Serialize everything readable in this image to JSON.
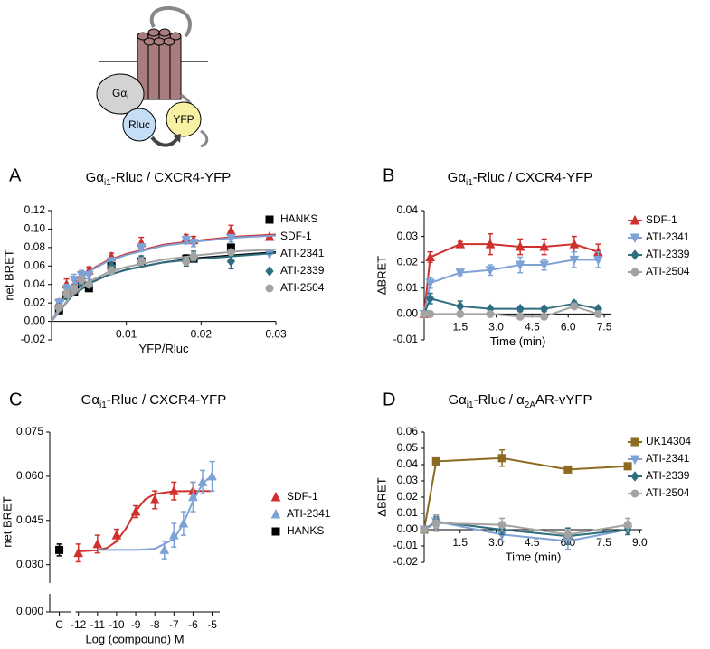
{
  "diagram": {
    "g_alpha": "Gα",
    "g_alpha_sub": "i",
    "rluc": "Rluc",
    "yfp": "YFP"
  },
  "chart_data": [
    {
      "panel": "A",
      "type": "scatter",
      "title": [
        {
          "text": "Gα"
        },
        {
          "text": "i1",
          "sub": true
        },
        {
          "text": "-Rluc / CXCR4-YFP"
        }
      ],
      "xlabel": "YFP/Rluc",
      "ylabel": "net BRET",
      "xlim": [
        0,
        0.03
      ],
      "ylim": [
        -0.02,
        0.12
      ],
      "xticks": [
        0.01,
        0.02,
        0.03
      ],
      "yticks": [
        -0.02,
        {
          "value": 0,
          "label": "0.00"
        },
        0.02,
        0.04,
        0.06,
        0.08,
        {
          "value": 0.1,
          "label": "0.10"
        },
        0.12
      ],
      "series": [
        {
          "name": "HANKS",
          "color": "#000000",
          "marker": "square",
          "x": [
            0.001,
            0.002,
            0.003,
            0.004,
            0.005,
            0.008,
            0.012,
            0.018,
            0.019,
            0.024
          ],
          "values": [
            0.012,
            0.028,
            0.032,
            0.04,
            0.036,
            0.06,
            0.065,
            0.068,
            0.068,
            0.08
          ],
          "errors": [
            0.003,
            0.004,
            0.004,
            0.003,
            0.003,
            0.003,
            0.004,
            0.004,
            0.003,
            0.002
          ],
          "fit_x": [
            0,
            0.0025,
            0.005,
            0.0075,
            0.01,
            0.015,
            0.02,
            0.025,
            0.03
          ],
          "fit": [
            0,
            0.026,
            0.041,
            0.05,
            0.056,
            0.064,
            0.069,
            0.072,
            0.075
          ]
        },
        {
          "name": "SDF-1",
          "color": "#d0312d",
          "marker": "triangle-up",
          "x": [
            0.001,
            0.002,
            0.003,
            0.004,
            0.005,
            0.008,
            0.012,
            0.018,
            0.019,
            0.024
          ],
          "values": [
            0.02,
            0.04,
            0.035,
            0.05,
            0.055,
            0.07,
            0.085,
            0.09,
            0.088,
            0.098
          ],
          "errors": [
            0.004,
            0.006,
            0.005,
            0.005,
            0.004,
            0.004,
            0.006,
            0.004,
            0.004,
            0.006
          ],
          "fit_x": [
            0,
            0.0025,
            0.005,
            0.0075,
            0.01,
            0.015,
            0.02,
            0.025,
            0.03
          ],
          "fit": [
            0,
            0.037,
            0.055,
            0.066,
            0.073,
            0.083,
            0.088,
            0.092,
            0.094
          ]
        },
        {
          "name": "ATI-2341",
          "color": "#7ea2d6",
          "marker": "triangle-down",
          "x": [
            0.001,
            0.002,
            0.003,
            0.004,
            0.005,
            0.008,
            0.012,
            0.018,
            0.019,
            0.024
          ],
          "values": [
            0.02,
            0.035,
            0.045,
            0.05,
            0.05,
            0.065,
            0.08,
            0.088,
            0.085,
            0.09
          ],
          "errors": [
            0.004,
            0.005,
            0.006,
            0.005,
            0.004,
            0.004,
            0.004,
            0.004,
            0.004,
            0.004
          ],
          "fit_x": [
            0,
            0.0025,
            0.005,
            0.0075,
            0.01,
            0.015,
            0.02,
            0.025,
            0.03
          ],
          "fit": [
            0,
            0.036,
            0.054,
            0.065,
            0.072,
            0.082,
            0.087,
            0.091,
            0.093
          ]
        },
        {
          "name": "ATI-2339",
          "color": "#2f6e80",
          "marker": "diamond",
          "x": [
            0.001,
            0.002,
            0.003,
            0.004,
            0.005,
            0.008,
            0.012,
            0.018,
            0.019,
            0.024
          ],
          "values": [
            0.015,
            0.028,
            0.035,
            0.04,
            0.04,
            0.06,
            0.067,
            0.065,
            0.07,
            0.065
          ],
          "errors": [
            0.003,
            0.004,
            0.004,
            0.004,
            0.003,
            0.004,
            0.004,
            0.005,
            0.006,
            0.008
          ],
          "fit_x": [
            0,
            0.0025,
            0.005,
            0.0075,
            0.01,
            0.015,
            0.02,
            0.025,
            0.03
          ],
          "fit": [
            0,
            0.026,
            0.041,
            0.05,
            0.056,
            0.064,
            0.068,
            0.071,
            0.074
          ]
        },
        {
          "name": "ATI-2504",
          "color": "#a3a3a3",
          "marker": "circle",
          "x": [
            0.001,
            0.002,
            0.003,
            0.004,
            0.005,
            0.008,
            0.012,
            0.018,
            0.019,
            0.024
          ],
          "values": [
            0.015,
            0.03,
            0.035,
            0.045,
            0.04,
            0.055,
            0.065,
            0.065,
            0.07,
            0.075
          ],
          "errors": [
            0.003,
            0.004,
            0.004,
            0.004,
            0.003,
            0.004,
            0.004,
            0.004,
            0.004,
            0.003
          ],
          "fit_x": [
            0,
            0.0025,
            0.005,
            0.0075,
            0.01,
            0.015,
            0.02,
            0.025,
            0.03
          ],
          "fit": [
            0,
            0.027,
            0.043,
            0.053,
            0.059,
            0.067,
            0.072,
            0.076,
            0.078
          ]
        }
      ]
    },
    {
      "panel": "B",
      "type": "line",
      "title": [
        {
          "text": "Gα"
        },
        {
          "text": "i1",
          "sub": true
        },
        {
          "text": "-Rluc / CXCR4-YFP"
        }
      ],
      "xlabel": "Time (min)",
      "ylabel": "ΔBRET",
      "xlim": [
        0,
        7.8
      ],
      "ylim": [
        -0.01,
        0.04
      ],
      "xticks": [
        1.5,
        {
          "value": 3,
          "label": "3.0"
        },
        4.5,
        {
          "value": 6,
          "label": "6.0"
        },
        7.5
      ],
      "yticks": [
        -0.01,
        {
          "value": 0,
          "label": "0.00"
        },
        0.01,
        0.02,
        0.03,
        0.04
      ],
      "series": [
        {
          "name": "SDF-1",
          "color": "#d0312d",
          "marker": "triangle-up",
          "x": [
            0,
            0.25,
            1.5,
            2.75,
            4,
            5,
            6.25,
            7.25
          ],
          "values": [
            0,
            0.022,
            0.027,
            0.027,
            0.026,
            0.026,
            0.027,
            0.024
          ],
          "errors": [
            0,
            0.002,
            0.001,
            0.004,
            0.003,
            0.003,
            0.003,
            0.003
          ]
        },
        {
          "name": "ATI-2341",
          "color": "#7ea2d6",
          "marker": "triangle-down",
          "x": [
            0,
            0.25,
            1.5,
            2.75,
            4,
            5,
            6.25,
            7.25
          ],
          "values": [
            0,
            0.012,
            0.016,
            0.017,
            0.019,
            0.019,
            0.021,
            0.021
          ],
          "errors": [
            0,
            0.002,
            0.001,
            0.002,
            0.003,
            0.002,
            0.003,
            0.003
          ]
        },
        {
          "name": "ATI-2339",
          "color": "#2f6e80",
          "marker": "diamond",
          "x": [
            0,
            0.25,
            1.5,
            2.75,
            4,
            5,
            6.25,
            7.25
          ],
          "values": [
            0,
            0.006,
            0.003,
            0.002,
            0.002,
            0.002,
            0.004,
            0.002
          ],
          "errors": [
            0,
            0.002,
            0.002,
            0.001,
            0.001,
            0.001,
            0.001,
            0.001
          ]
        },
        {
          "name": "ATI-2504",
          "color": "#a3a3a3",
          "marker": "circle",
          "x": [
            0,
            0.25,
            1.5,
            2.75,
            4,
            5,
            6.25,
            7.25
          ],
          "values": [
            0,
            0,
            0,
            0,
            -0.001,
            -0.001,
            0.003,
            0
          ],
          "errors": [
            0,
            0.001,
            0.001,
            0.001,
            0.001,
            0.001,
            0.001,
            0.001
          ]
        }
      ]
    },
    {
      "panel": "C",
      "type": "scatter",
      "axis_break": true,
      "title": [
        {
          "text": "Gα"
        },
        {
          "text": "i1",
          "sub": true
        },
        {
          "text": "-Rluc / CXCR4-YFP"
        }
      ],
      "xlabel": "Log (compound) M",
      "ylabel": "net BRET",
      "xlim": [
        -13.5,
        -4.6
      ],
      "ylim": [
        0.025,
        0.075
      ],
      "xticks": [
        {
          "value": -13,
          "label": "C"
        },
        -12,
        -11,
        -10,
        -9,
        -8,
        -7,
        -6,
        -5
      ],
      "yticks": [
        {
          "value": 0,
          "label": "0.000"
        },
        {
          "value": 0.03,
          "label": "0.030"
        },
        0.045,
        {
          "value": 0.06,
          "label": "0.060"
        },
        0.075
      ],
      "series": [
        {
          "name": "SDF-1",
          "color": "#d0312d",
          "marker": "triangle-up",
          "x": [
            -12,
            -11,
            -10,
            -9,
            -8,
            -7,
            -6
          ],
          "values": [
            0.034,
            0.037,
            0.04,
            0.048,
            0.052,
            0.055,
            0.055
          ],
          "errors": [
            0.003,
            0.003,
            0.002,
            0.002,
            0.003,
            0.003,
            0.003
          ],
          "fit_x": [
            -12,
            -11,
            -10.5,
            -10,
            -9.5,
            -9,
            -8.5,
            -8,
            -7,
            -6,
            -5
          ],
          "fit": [
            0.0345,
            0.0349,
            0.0357,
            0.0379,
            0.0424,
            0.0482,
            0.0522,
            0.054,
            0.0549,
            0.055,
            0.055
          ]
        },
        {
          "name": "ATI-2341",
          "color": "#7ea2d6",
          "marker": "triangle-up",
          "x": [
            -7.5,
            -7,
            -6.5,
            -6,
            -5.5,
            -5
          ],
          "values": [
            0.035,
            0.04,
            0.044,
            0.053,
            0.058,
            0.06
          ],
          "errors": [
            0.003,
            0.004,
            0.004,
            0.005,
            0.004,
            0.005
          ],
          "fit_x": [
            -11,
            -10,
            -9,
            -8,
            -7,
            -6.5,
            -6,
            -5.5,
            -5
          ],
          "fit": [
            0.035,
            0.035,
            0.035,
            0.0354,
            0.0387,
            0.044,
            0.0516,
            0.0575,
            0.0604
          ]
        },
        {
          "name": "HANKS",
          "color": "#000000",
          "marker": "square",
          "x": [
            -13
          ],
          "values": [
            0.035
          ],
          "errors": [
            0.002
          ]
        }
      ]
    },
    {
      "panel": "D",
      "type": "line",
      "title": [
        {
          "text": "Gα"
        },
        {
          "text": "i1",
          "sub": true
        },
        {
          "text": "-Rluc / α"
        },
        {
          "text": "2A",
          "sub": true
        },
        {
          "text": "AR-vYFP"
        }
      ],
      "xlabel": "Time (min)",
      "ylabel": "ΔBRET",
      "xlim": [
        0,
        9.1
      ],
      "ylim": [
        -0.02,
        0.06
      ],
      "xticks": [
        1.5,
        {
          "value": 3,
          "label": "3.0"
        },
        4.5,
        {
          "value": 6,
          "label": "6.0"
        },
        7.5,
        {
          "value": 9,
          "label": "9.0"
        }
      ],
      "yticks": [
        -0.02,
        -0.01,
        {
          "value": 0,
          "label": "0.00"
        },
        0.01,
        0.02,
        0.03,
        0.04,
        0.05,
        0.06
      ],
      "series": [
        {
          "name": "UK14304",
          "color": "#8c6a22",
          "marker": "square",
          "x": [
            0,
            0.5,
            3.25,
            6,
            8.5
          ],
          "values": [
            0,
            0.042,
            0.044,
            0.037,
            0.039
          ],
          "errors": [
            0,
            0.002,
            0.005,
            0.001,
            0.002
          ]
        },
        {
          "name": "ATI-2341",
          "color": "#7ea2d6",
          "marker": "triangle-down",
          "x": [
            0,
            0.5,
            3.25,
            6,
            8.5
          ],
          "values": [
            0,
            0.005,
            -0.003,
            -0.007,
            0
          ],
          "errors": [
            0,
            0.004,
            0.004,
            0.005,
            0.003
          ]
        },
        {
          "name": "ATI-2339",
          "color": "#2f6e80",
          "marker": "diamond",
          "x": [
            0,
            0.5,
            3.25,
            6,
            8.5
          ],
          "values": [
            0,
            0.005,
            0,
            -0.004,
            0
          ],
          "errors": [
            0,
            0.003,
            0.003,
            0.005,
            0.003
          ]
        },
        {
          "name": "ATI-2504",
          "color": "#a3a3a3",
          "marker": "circle",
          "x": [
            0,
            0.5,
            3.25,
            6,
            8.5
          ],
          "values": [
            0,
            0.004,
            0.003,
            -0.003,
            0.003
          ],
          "errors": [
            0,
            0.005,
            0.004,
            0.003,
            0.004
          ]
        }
      ]
    }
  ]
}
